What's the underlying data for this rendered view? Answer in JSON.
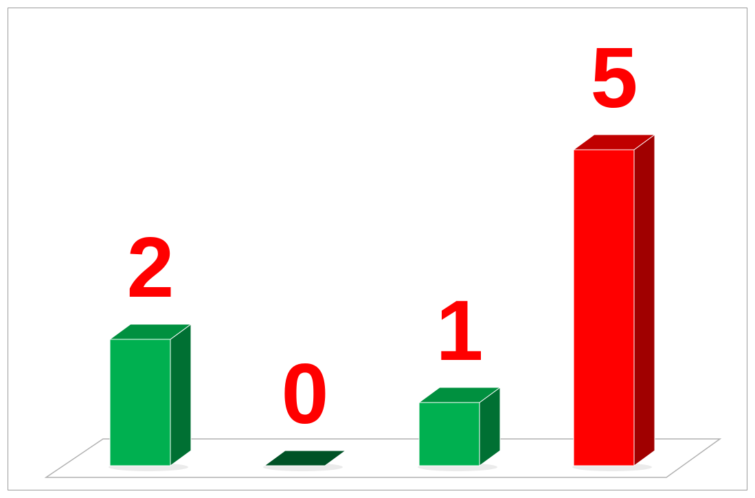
{
  "chart_data": {
    "type": "bar",
    "categories": [
      "",
      "",
      "",
      ""
    ],
    "values": [
      2,
      0,
      1,
      5
    ],
    "title": "",
    "xlabel": "",
    "ylabel": "",
    "ylim": [
      0,
      5.5
    ],
    "grid": false,
    "legend": "none",
    "three_d": true,
    "data_labels": [
      "2",
      "0",
      "1",
      "5"
    ],
    "bar_colors": [
      "#00B050",
      "#00B050",
      "#00B050",
      "#FF0000"
    ],
    "bar_side_colors": [
      "#007033",
      "#005226",
      "#007033",
      "#A00000"
    ],
    "bar_top_colors": [
      "#00903F",
      "#005226",
      "#00903F",
      "#C00000"
    ],
    "label_color": "#FF0000",
    "floor_color": "#b0b0b0"
  }
}
